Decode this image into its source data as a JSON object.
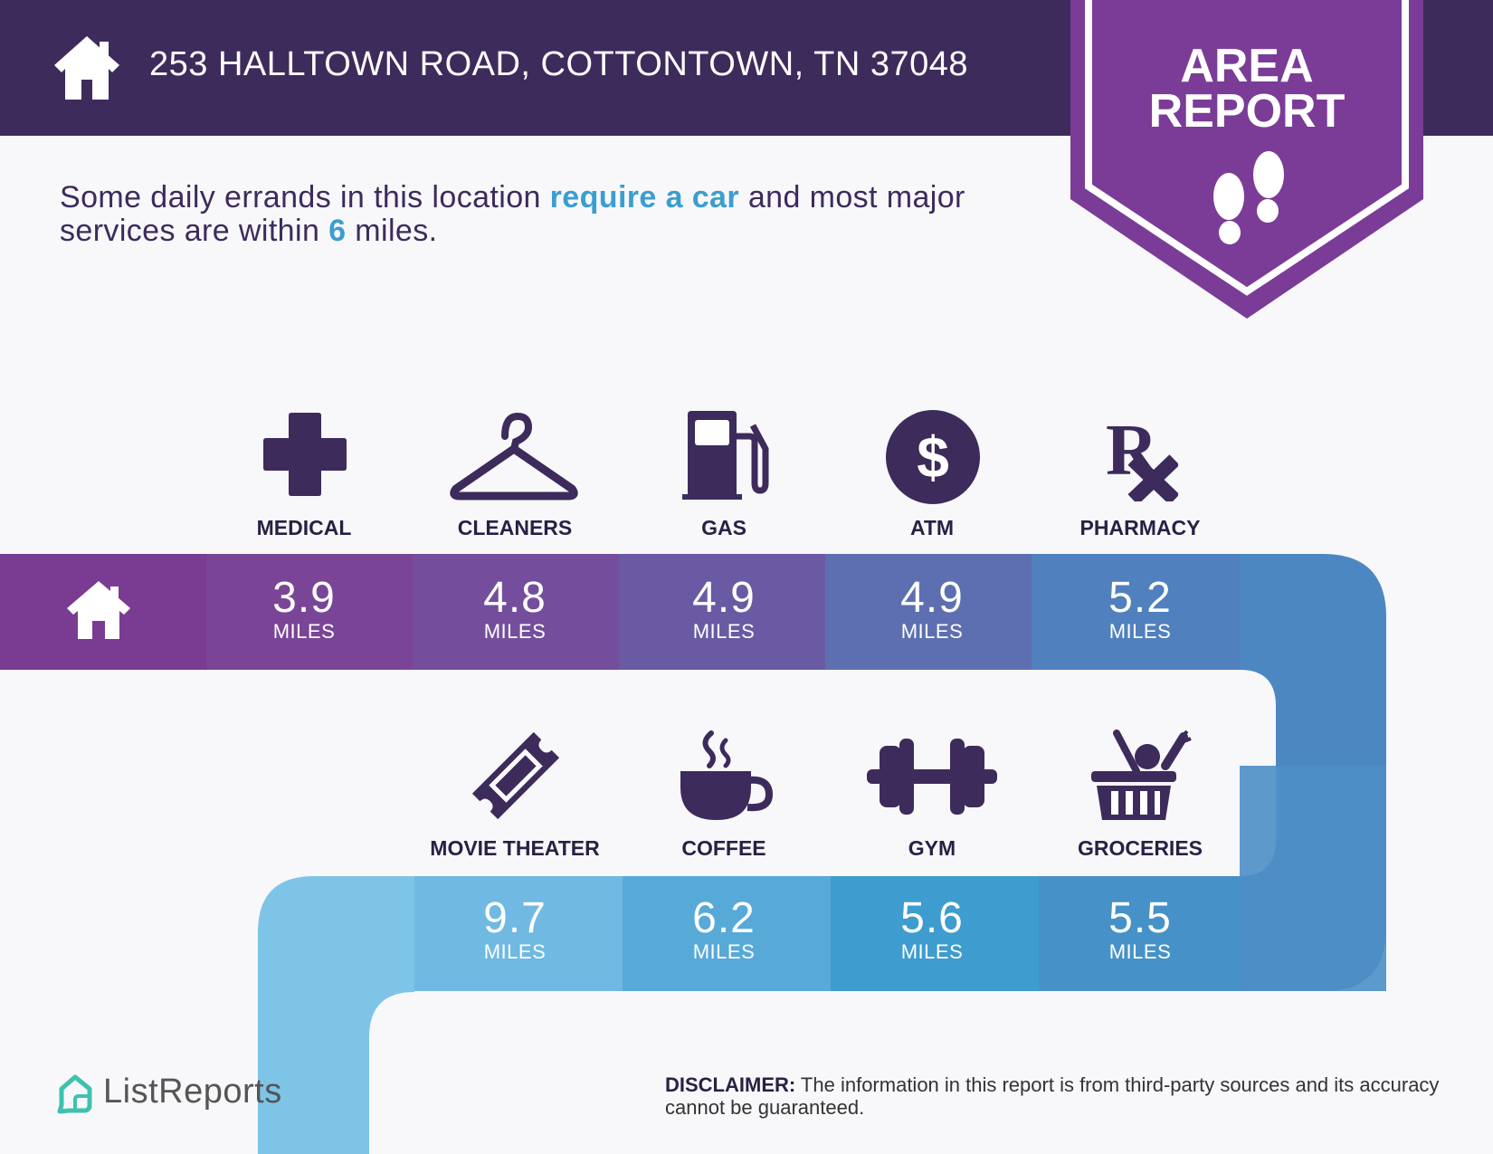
{
  "header": {
    "address": "253 HALLTOWN ROAD, COTTONTOWN, TN 37048",
    "icon": "house-icon",
    "background": "#3d2b5c"
  },
  "badge": {
    "line1": "AREA",
    "line2": "REPORT",
    "icon": "footprints-icon",
    "color": "#7a3c97"
  },
  "intro": {
    "part1": "Some daily errands in this location ",
    "highlight1": "require a car",
    "part2": " and most major services are within ",
    "highlight2": "6",
    "part3": " miles.",
    "highlight_color": "#3b9ed1"
  },
  "row1": [
    {
      "label": "MEDICAL",
      "icon": "medical-cross-icon",
      "distance": "3.9",
      "unit": "MILES"
    },
    {
      "label": "CLEANERS",
      "icon": "hanger-icon",
      "distance": "4.8",
      "unit": "MILES"
    },
    {
      "label": "GAS",
      "icon": "gas-pump-icon",
      "distance": "4.9",
      "unit": "MILES"
    },
    {
      "label": "ATM",
      "icon": "dollar-icon",
      "distance": "4.9",
      "unit": "MILES"
    },
    {
      "label": "PHARMACY",
      "icon": "rx-icon",
      "distance": "5.2",
      "unit": "MILES"
    }
  ],
  "row2": [
    {
      "label": "MOVIE THEATER",
      "icon": "ticket-icon",
      "distance": "9.7",
      "unit": "MILES"
    },
    {
      "label": "COFFEE",
      "icon": "coffee-cup-icon",
      "distance": "6.2",
      "unit": "MILES"
    },
    {
      "label": "GYM",
      "icon": "dumbbell-icon",
      "distance": "5.6",
      "unit": "MILES"
    },
    {
      "label": "GROCERIES",
      "icon": "grocery-basket-icon",
      "distance": "5.5",
      "unit": "MILES"
    }
  ],
  "road_colors": {
    "row1": [
      "#7a3b93",
      "#7a4596",
      "#744e9c",
      "#6a5aa3",
      "#5d6fb0",
      "#5080bd",
      "#4d87c2"
    ],
    "row2": [
      "#4d8ec6",
      "#4692c8",
      "#3e9ccf",
      "#57a9d8",
      "#6fb9e2",
      "#7ec4e7"
    ]
  },
  "footer": {
    "brand": "ListReports",
    "brand_color": "#3fc1b0",
    "disclaimer_label": "DISCLAIMER:",
    "disclaimer_text": " The information in this report is from third-party sources and its accuracy cannot be guaranteed."
  }
}
